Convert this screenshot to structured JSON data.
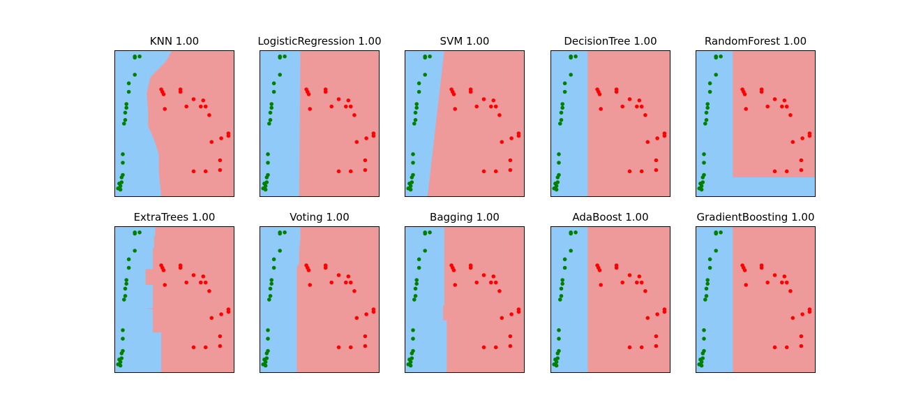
{
  "chart_data": {
    "type": "scatter",
    "grid": false,
    "axes_visible": false,
    "layout": "2 rows x 5 columns",
    "region_colors": {
      "green_class": "#90caf9",
      "red_class": "#ef9a9a"
    },
    "point_colors": {
      "green_class": "#008000",
      "red_class": "#ff0000"
    },
    "xlim": [
      0,
      10
    ],
    "ylim": [
      0,
      12
    ],
    "points": {
      "green": [
        [
          1.7,
          11.4
        ],
        [
          2.1,
          11.5
        ],
        [
          1.7,
          11.5
        ],
        [
          1.7,
          10.0
        ],
        [
          1.2,
          9.3
        ],
        [
          1.2,
          8.6
        ],
        [
          1.0,
          7.6
        ],
        [
          1.0,
          7.3
        ],
        [
          0.9,
          6.9
        ],
        [
          0.9,
          6.3
        ],
        [
          0.8,
          6.0
        ],
        [
          0.7,
          3.5
        ],
        [
          0.7,
          2.8
        ],
        [
          0.7,
          1.8
        ],
        [
          0.6,
          1.6
        ],
        [
          0.6,
          1.2
        ],
        [
          0.4,
          1.1
        ],
        [
          0.5,
          0.9
        ],
        [
          0.3,
          0.7
        ],
        [
          0.5,
          0.6
        ]
      ],
      "red": [
        [
          3.9,
          8.8
        ],
        [
          4.0,
          8.6
        ],
        [
          4.1,
          8.4
        ],
        [
          5.5,
          8.8
        ],
        [
          5.5,
          8.6
        ],
        [
          4.2,
          7.2
        ],
        [
          6.0,
          7.4
        ],
        [
          6.6,
          8.0
        ],
        [
          7.4,
          7.9
        ],
        [
          7.2,
          7.4
        ],
        [
          7.6,
          7.4
        ],
        [
          7.9,
          6.7
        ],
        [
          8.9,
          4.8
        ],
        [
          9.5,
          5.0
        ],
        [
          9.5,
          5.2
        ],
        [
          8.1,
          4.5
        ],
        [
          6.6,
          2.1
        ],
        [
          7.6,
          2.1
        ],
        [
          8.8,
          2.2
        ],
        [
          8.8,
          3.0
        ]
      ]
    },
    "panels": [
      {
        "title": "KNN 1.00",
        "boundary": "curve",
        "pts": [
          [
            4.8,
            12
          ],
          [
            4.3,
            11.1
          ],
          [
            3.0,
            9.8
          ],
          [
            2.7,
            8.5
          ],
          [
            2.8,
            7.0
          ],
          [
            2.8,
            5.8
          ],
          [
            3.3,
            4.7
          ],
          [
            3.7,
            3.5
          ],
          [
            3.7,
            2.0
          ],
          [
            3.9,
            0
          ]
        ]
      },
      {
        "title": "LogisticRegression 1.00",
        "boundary": "curve",
        "pts": [
          [
            3.4,
            12
          ],
          [
            3.3,
            0
          ]
        ]
      },
      {
        "title": "SVM 1.00",
        "boundary": "curve",
        "pts": [
          [
            3.3,
            12
          ],
          [
            1.9,
            0
          ]
        ]
      },
      {
        "title": "DecisionTree 1.00",
        "boundary": "curve",
        "pts": [
          [
            3.1,
            12
          ],
          [
            3.1,
            0
          ]
        ]
      },
      {
        "title": "RandomForest 1.00",
        "boundary": "step",
        "split_x": 3.1,
        "split_y": 1.6
      },
      {
        "title": "ExtraTrees 1.00",
        "boundary": "curve",
        "pts": [
          [
            3.4,
            12
          ],
          [
            3.4,
            11.2
          ],
          [
            3.3,
            11.2
          ],
          [
            3.3,
            10.2
          ],
          [
            3.2,
            10.2
          ],
          [
            3.2,
            8.5
          ],
          [
            3.0,
            8.5
          ],
          [
            2.6,
            8.5
          ],
          [
            2.6,
            7.2
          ],
          [
            3.2,
            7.2
          ],
          [
            3.2,
            5.3
          ],
          [
            2.6,
            5.3
          ],
          [
            3.2,
            5.2
          ],
          [
            3.2,
            3.3
          ],
          [
            3.9,
            3.3
          ],
          [
            3.9,
            0
          ]
        ]
      },
      {
        "title": "Voting 1.00",
        "boundary": "curve",
        "pts": [
          [
            3.4,
            12
          ],
          [
            3.4,
            11.0
          ],
          [
            3.3,
            10.0
          ],
          [
            3.3,
            9.0
          ],
          [
            3.1,
            8.6
          ],
          [
            3.1,
            7.5
          ],
          [
            3.1,
            6.0
          ],
          [
            3.1,
            0
          ]
        ]
      },
      {
        "title": "Bagging 1.00",
        "boundary": "curve",
        "pts": [
          [
            3.3,
            12
          ],
          [
            3.3,
            10.0
          ],
          [
            3.3,
            7.0
          ],
          [
            3.3,
            5.5
          ],
          [
            3.2,
            5.5
          ],
          [
            3.2,
            4.3
          ],
          [
            3.5,
            4.3
          ],
          [
            3.5,
            0
          ]
        ]
      },
      {
        "title": "AdaBoost 1.00",
        "boundary": "curve",
        "pts": [
          [
            3.1,
            12
          ],
          [
            3.1,
            0
          ]
        ]
      },
      {
        "title": "GradientBoosting 1.00",
        "boundary": "curve",
        "pts": [
          [
            3.1,
            12
          ],
          [
            3.1,
            0
          ]
        ]
      }
    ]
  }
}
